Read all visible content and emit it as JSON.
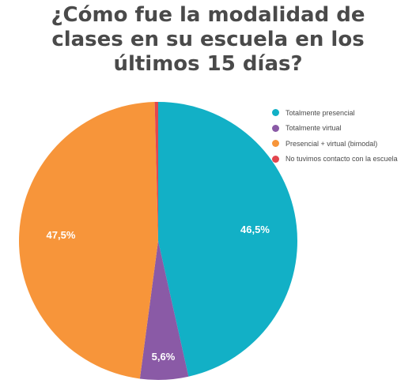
{
  "title_lines": [
    "¿Cómo fue la modalidad de",
    "clases en su escuela en los",
    "últimos 15 días?"
  ],
  "chart_data": {
    "type": "pie",
    "title": "¿Cómo fue la modalidad de clases en su escuela en los últimos 15 días?",
    "legend_position": "top-right",
    "slices": [
      {
        "label": "Totalmente presencial",
        "value": 46.5,
        "value_label": "46,5%",
        "color": "#12b0c6"
      },
      {
        "label": "Totalmente virtual",
        "value": 5.6,
        "value_label": "5,6%",
        "color": "#8a5aa6"
      },
      {
        "label": "Presencial + virtual (bimodal)",
        "value": 47.5,
        "value_label": "47,5%",
        "color": "#f7953a"
      },
      {
        "label": "No tuvimos contacto con la escuela",
        "value": 0.4,
        "value_label": "",
        "color": "#e2464e"
      }
    ]
  }
}
